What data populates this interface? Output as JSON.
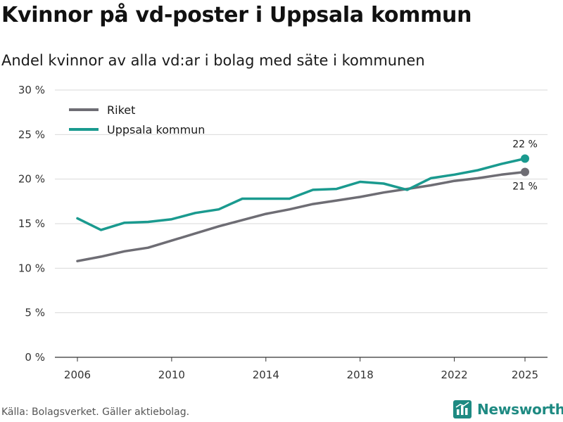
{
  "header": {
    "title": "Kvinnor på vd-poster i Uppsala kommun",
    "subtitle": "Andel kvinnor av alla vd:ar i bolag med säte i kommunen"
  },
  "footer": {
    "source": "Källa: Bolagsverket. Gäller aktiebolag.",
    "brand": "Newsworthy",
    "brand_icon": "bar-chart-logo-icon"
  },
  "colors": {
    "riket": "#6e6d74",
    "uppsala": "#1a9a8f",
    "grid": "#d9d9d9",
    "brand": "#1e8a82"
  },
  "chart_data": {
    "type": "line",
    "title": "Kvinnor på vd-poster i Uppsala kommun",
    "subtitle": "Andel kvinnor av alla vd:ar i bolag med säte i kommunen",
    "xlabel": "",
    "ylabel": "",
    "x": [
      2006,
      2007,
      2008,
      2009,
      2010,
      2011,
      2012,
      2013,
      2014,
      2015,
      2016,
      2017,
      2018,
      2019,
      2020,
      2021,
      2022,
      2023,
      2024,
      2025
    ],
    "xlim": [
      2006,
      2025
    ],
    "xticks": [
      2006,
      2010,
      2014,
      2018,
      2022,
      2025
    ],
    "ylim": [
      0,
      30
    ],
    "yticks": [
      0,
      5,
      10,
      15,
      20,
      25,
      30
    ],
    "ytick_labels": [
      "0 %",
      "5 %",
      "10 %",
      "15 %",
      "20 %",
      "25 %",
      "30 %"
    ],
    "grid": true,
    "legend_position": "top-left",
    "series": [
      {
        "name": "Riket",
        "color": "#6e6d74",
        "values": [
          10.8,
          11.3,
          11.9,
          12.3,
          13.1,
          13.9,
          14.7,
          15.4,
          16.1,
          16.6,
          17.2,
          17.6,
          18.0,
          18.5,
          18.9,
          19.3,
          19.8,
          20.1,
          20.5,
          20.8
        ],
        "end_label": "21 %",
        "end_label_position": "below"
      },
      {
        "name": "Uppsala kommun",
        "color": "#1a9a8f",
        "values": [
          15.6,
          14.3,
          15.1,
          15.2,
          15.5,
          16.2,
          16.6,
          17.8,
          17.8,
          17.8,
          18.8,
          18.9,
          19.7,
          19.5,
          18.8,
          20.1,
          20.5,
          21.0,
          21.7,
          22.3
        ],
        "end_label": "22 %",
        "end_label_position": "above"
      }
    ]
  }
}
